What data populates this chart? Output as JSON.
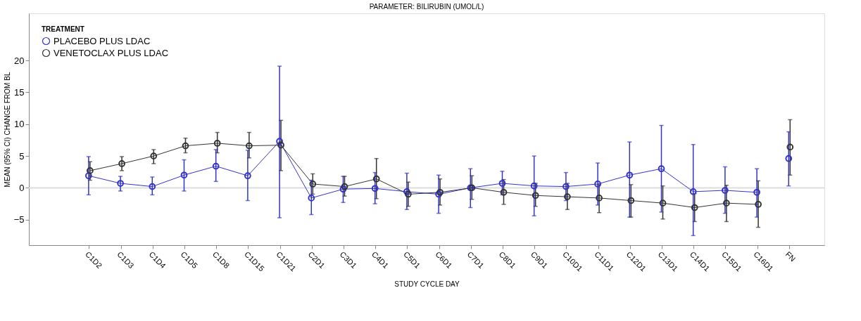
{
  "chart_data": {
    "type": "line",
    "title": "PARAMETER: BILIRUBIN (UMOL/L)",
    "xlabel": "STUDY CYCLE DAY",
    "ylabel": "MEAN (95% CI) CHANGE FROM BL",
    "legend_title": "TREATMENT",
    "categories": [
      "C1D2",
      "C1D3",
      "C1D4",
      "C1D5",
      "C1D8",
      "C1D15",
      "C1D21",
      "C2D1",
      "C3D1",
      "C4D1",
      "C5D1",
      "C6D1",
      "C7D1",
      "C8D1",
      "C9D1",
      "C10D1",
      "C11D1",
      "C12D1",
      "C13D1",
      "C14D1",
      "C15D1",
      "C16D1",
      "FN"
    ],
    "series": [
      {
        "name": "PLACEBO PLUS LDAC",
        "color": "#3333cc",
        "values": [
          1.9,
          0.7,
          0.2,
          2.0,
          3.4,
          1.9,
          7.3,
          -1.6,
          -0.2,
          -0.1,
          -0.6,
          -1.0,
          0.0,
          0.7,
          0.3,
          0.2,
          0.6,
          2.0,
          3.0,
          -0.6,
          -0.4,
          -0.7,
          null
        ],
        "errors": [
          [
            -1.1,
            4.9
          ],
          [
            -0.5,
            1.8
          ],
          [
            -1.1,
            1.7
          ],
          [
            -0.5,
            4.4
          ],
          [
            1.0,
            6.0
          ],
          [
            -2.0,
            5.9
          ],
          [
            -4.7,
            19.1
          ],
          [
            -4.2,
            1.2
          ],
          [
            -2.3,
            1.8
          ],
          [
            -2.5,
            2.4
          ],
          [
            -3.4,
            2.3
          ],
          [
            -4.0,
            2.0
          ],
          [
            -3.1,
            3.0
          ],
          [
            -1.1,
            2.6
          ],
          [
            -4.4,
            5.0
          ],
          [
            -2.0,
            2.4
          ],
          [
            -2.7,
            3.9
          ],
          [
            -4.6,
            7.2
          ],
          [
            -3.8,
            9.8
          ],
          [
            -7.5,
            6.8
          ],
          [
            -4.0,
            3.3
          ],
          [
            -4.6,
            3.0
          ],
          null
        ]
      },
      {
        "name": "VENETOCLAX PLUS LDAC",
        "color": "#333333",
        "values": [
          2.7,
          3.8,
          5.0,
          6.6,
          7.0,
          6.6,
          6.7,
          0.6,
          0.2,
          1.4,
          -1.0,
          -0.7,
          0.0,
          -0.7,
          -1.2,
          -1.4,
          -1.6,
          -2.0,
          -2.4,
          -3.1,
          -2.4,
          -2.6,
          null
        ],
        "errors": [
          [
            1.2,
            4.1
          ],
          [
            2.7,
            4.9
          ],
          [
            3.8,
            6.0
          ],
          [
            5.5,
            7.8
          ],
          [
            5.5,
            8.7
          ],
          [
            4.7,
            8.7
          ],
          [
            2.7,
            10.6
          ],
          [
            -1.0,
            2.2
          ],
          [
            -1.3,
            1.8
          ],
          [
            -1.7,
            4.6
          ],
          [
            -2.9,
            0.9
          ],
          [
            -2.7,
            1.4
          ],
          [
            -1.8,
            1.9
          ],
          [
            -2.6,
            1.3
          ],
          [
            -2.9,
            0.7
          ],
          [
            -3.4,
            0.7
          ],
          [
            -3.9,
            0.5
          ],
          [
            -4.6,
            0.5
          ],
          [
            -4.9,
            0.3
          ],
          [
            -5.3,
            -0.9
          ],
          [
            -5.3,
            0.4
          ],
          [
            -6.2,
            1.1
          ],
          null
        ]
      },
      {
        "type": "scatter",
        "color": "#3333cc",
        "values": [
          null,
          null,
          null,
          null,
          null,
          null,
          null,
          null,
          null,
          null,
          null,
          null,
          null,
          null,
          null,
          null,
          null,
          null,
          null,
          null,
          null,
          null,
          4.6
        ],
        "errors": [
          null,
          null,
          null,
          null,
          null,
          null,
          null,
          null,
          null,
          null,
          null,
          null,
          null,
          null,
          null,
          null,
          null,
          null,
          null,
          null,
          null,
          null,
          [
            0.3,
            8.8
          ]
        ]
      },
      {
        "type": "scatter",
        "color": "#333333",
        "values": [
          null,
          null,
          null,
          null,
          null,
          null,
          null,
          null,
          null,
          null,
          null,
          null,
          null,
          null,
          null,
          null,
          null,
          null,
          null,
          null,
          null,
          null,
          6.4
        ],
        "errors": [
          null,
          null,
          null,
          null,
          null,
          null,
          null,
          null,
          null,
          null,
          null,
          null,
          null,
          null,
          null,
          null,
          null,
          null,
          null,
          null,
          null,
          null,
          [
            2.0,
            10.7
          ]
        ]
      }
    ],
    "ylim": [
      -9,
      27.4
    ],
    "yticks": [
      -5,
      0,
      5,
      10,
      15,
      20
    ],
    "grid": false,
    "legend": "top left",
    "marker": "circle",
    "line_style": "solid",
    "ref_lines": [
      {
        "axis": "y",
        "value": 0,
        "color": "#dddddd"
      }
    ]
  }
}
